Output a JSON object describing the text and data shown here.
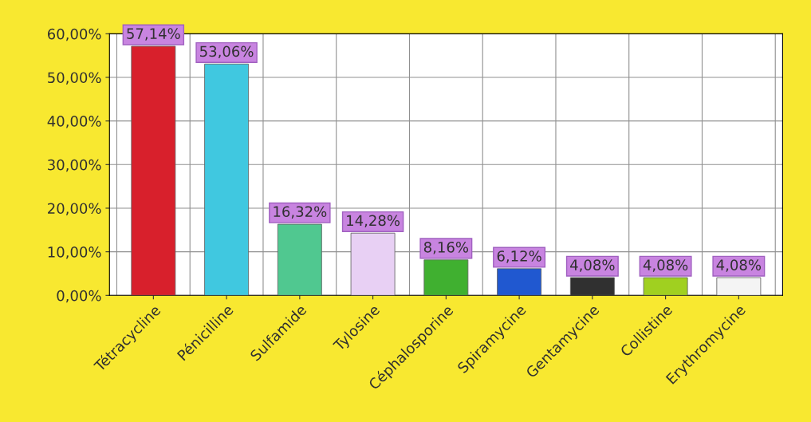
{
  "chart_data": {
    "type": "bar",
    "categories": [
      "Tétracycline",
      "Pénicilline",
      "Sulfamide",
      "Tylosine",
      "Céphalosporine",
      "Spiramycine",
      "Gentamycine",
      "Collistine",
      "Erythromycine"
    ],
    "values": [
      57.14,
      53.06,
      16.32,
      14.28,
      8.16,
      6.12,
      4.08,
      4.08,
      4.08
    ],
    "colors": [
      "#d8202c",
      "#40c8e0",
      "#50c890",
      "#e8d0f4",
      "#40b030",
      "#2058d0",
      "#303030",
      "#a0d020",
      "#f4f4f4"
    ],
    "value_labels": [
      "57,14%",
      "53,06%",
      "16,32%",
      "14,28%",
      "8,16%",
      "6,12%",
      "4,08%",
      "4,08%",
      "4,08%"
    ],
    "ylim": [
      0,
      60
    ],
    "yticks": [
      {
        "value": 0,
        "label": "0,00%"
      },
      {
        "value": 10,
        "label": "10,00%"
      },
      {
        "value": 20,
        "label": "20,00%"
      },
      {
        "value": 30,
        "label": "30,00%"
      },
      {
        "value": 40,
        "label": "40,00%"
      },
      {
        "value": 50,
        "label": "50,00%"
      },
      {
        "value": 60,
        "label": "60,00%"
      }
    ],
    "grid": true
  }
}
